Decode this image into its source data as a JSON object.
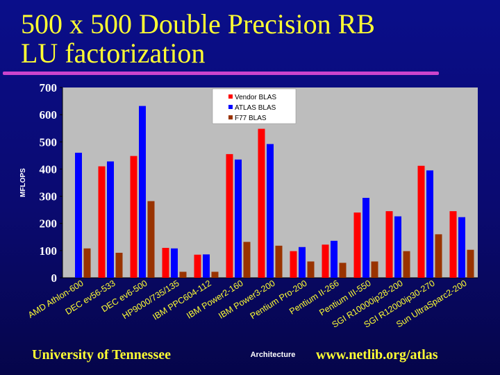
{
  "slide": {
    "title_line1": "500 x 500 Double Precision RB",
    "title_line2": "LU factorization",
    "footer_left": "University of Tennessee",
    "footer_right": "www.netlib.org/atlas"
  },
  "chart_data": {
    "type": "bar",
    "title": "",
    "xlabel": "Architecture",
    "ylabel": "MFLOPS",
    "ylim": [
      0,
      700
    ],
    "yticks": [
      0,
      100,
      200,
      300,
      400,
      500,
      600,
      700
    ],
    "grid": false,
    "legend_position": "top-center",
    "categories": [
      "AMD Athlon-600",
      "DEC ev56-533",
      "DEC ev6-500",
      "HP9000/735/135",
      "IBM PPC604-112",
      "IBM Power2-160",
      "IBM Power3-200",
      "Pentium Pro-200",
      "Pentium II-266",
      "Pentium III-550",
      "SGI R10000ip28-200",
      "SGI R12000ip30-270",
      "Sun UltraSparc2-200"
    ],
    "series": [
      {
        "name": "Vendor BLAS",
        "color": "#ff0000",
        "values": [
          0,
          410,
          448,
          110,
          85,
          455,
          548,
          98,
          122,
          240,
          245,
          412,
          245
        ]
      },
      {
        "name": "ATLAS BLAS",
        "color": "#0000ff",
        "values": [
          460,
          428,
          632,
          108,
          86,
          435,
          492,
          113,
          136,
          294,
          226,
          395,
          223
        ]
      },
      {
        "name": "F77 BLAS",
        "color": "#993300",
        "values": [
          108,
          92,
          282,
          22,
          22,
          132,
          118,
          60,
          55,
          60,
          98,
          160,
          103
        ]
      }
    ]
  }
}
